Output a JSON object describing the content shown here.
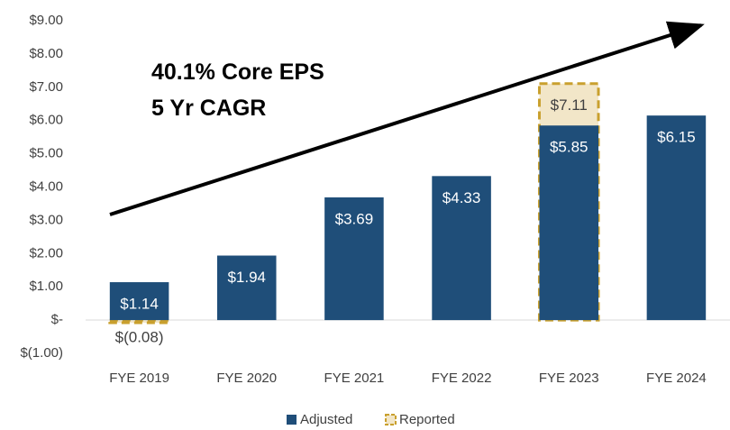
{
  "chart_data": {
    "type": "bar",
    "annotations": [
      "40.1% Core EPS",
      "5 Yr CAGR"
    ],
    "categories": [
      "FYE 2019",
      "FYE 2020",
      "FYE 2021",
      "FYE 2022",
      "FYE 2023",
      "FYE 2024"
    ],
    "series": [
      {
        "name": "Reported",
        "color": "#f2e6c8",
        "values": [
          -0.08,
          null,
          null,
          null,
          7.11,
          null
        ],
        "value_labels": [
          "$(0.08)",
          null,
          null,
          null,
          "$7.11",
          null
        ]
      },
      {
        "name": "Adjusted",
        "color": "#1f4e79",
        "values": [
          1.14,
          1.94,
          3.69,
          4.33,
          5.85,
          6.15
        ],
        "value_labels": [
          "$1.14",
          "$1.94",
          "$3.69",
          "$4.33",
          "$5.85",
          "$6.15"
        ]
      }
    ],
    "ylim": [
      -1,
      9
    ],
    "yticks": [
      {
        "value": -1,
        "label": "$(1.00)"
      },
      {
        "value": 0,
        "label": "$-"
      },
      {
        "value": 1,
        "label": "$1.00"
      },
      {
        "value": 2,
        "label": "$2.00"
      },
      {
        "value": 3,
        "label": "$3.00"
      },
      {
        "value": 4,
        "label": "$4.00"
      },
      {
        "value": 5,
        "label": "$5.00"
      },
      {
        "value": 6,
        "label": "$6.00"
      },
      {
        "value": 7,
        "label": "$7.00"
      },
      {
        "value": 8,
        "label": "$8.00"
      },
      {
        "value": 9,
        "label": "$9.00"
      }
    ],
    "grid": false
  }
}
